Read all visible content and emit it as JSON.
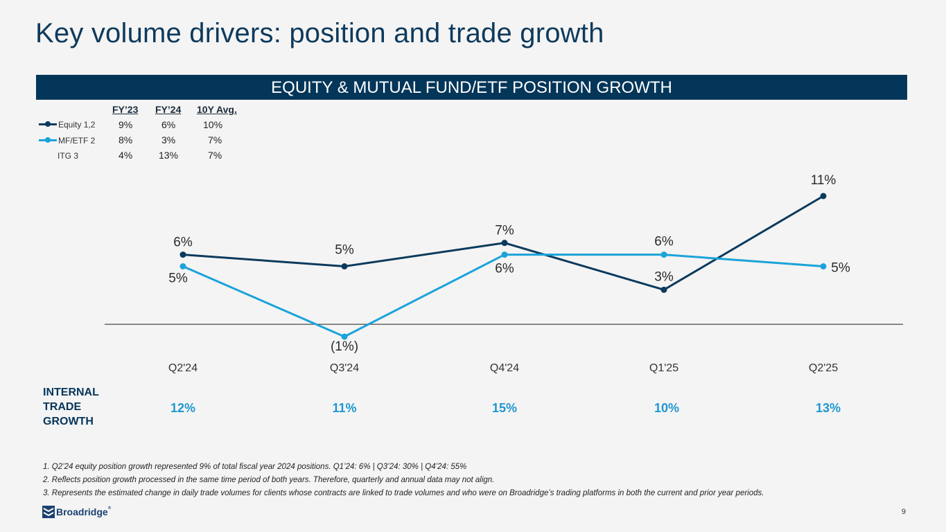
{
  "title": "Key volume drivers: position and trade growth",
  "banner": "EQUITY & MUTUAL FUND/ETF POSITION GROWTH",
  "legend": {
    "headers": [
      "FY’23",
      "FY’24",
      "10Y Avg."
    ],
    "rows": [
      {
        "name": "Equity",
        "sup": "1,2",
        "values": [
          "9%",
          "6%",
          "10%"
        ],
        "color": "#0b3a5d"
      },
      {
        "name": "MF/ETF",
        "sup": "2",
        "values": [
          "8%",
          "3%",
          "7%"
        ],
        "color": "#1aa3d9"
      },
      {
        "name": "ITG",
        "sup": "3",
        "values": [
          "4%",
          "13%",
          "7%"
        ]
      }
    ]
  },
  "chart_data": {
    "type": "line",
    "categories": [
      "Q2'24",
      "Q3'24",
      "Q4'24",
      "Q1'25",
      "Q2'25"
    ],
    "series": [
      {
        "name": "Equity",
        "values": [
          6,
          5,
          7,
          3,
          11
        ],
        "labels": [
          "6%",
          "5%",
          "7%",
          "3%",
          "11%"
        ],
        "color": "#0b3a5d"
      },
      {
        "name": "MF/ETF",
        "values": [
          5,
          -1,
          6,
          6,
          5
        ],
        "labels": [
          "5%",
          "(1%)",
          "6%",
          "6%",
          "5%"
        ],
        "color": "#1aa3d9"
      }
    ],
    "ylim": [
      -1,
      11
    ],
    "grid": false,
    "zero_line": true
  },
  "itg": {
    "label": "INTERNAL TRADE GROWTH",
    "values": [
      "12%",
      "11%",
      "15%",
      "10%",
      "13%"
    ]
  },
  "footnotes": [
    "1. Q2’24 equity position growth represented 9% of total fiscal year 2024 positions. Q1’24: 6% | Q3’24: 30% | Q4’24: 55%",
    "2. Reflects position growth processed in the same time period of both years. Therefore, quarterly and annual data may not align.",
    "3. Represents the estimated change in daily trade volumes for clients whose contracts are linked to trade volumes and who were on Broadridge’s trading platforms in both the current and prior year periods."
  ],
  "logo_text": "Broadridge",
  "page_number": "9"
}
